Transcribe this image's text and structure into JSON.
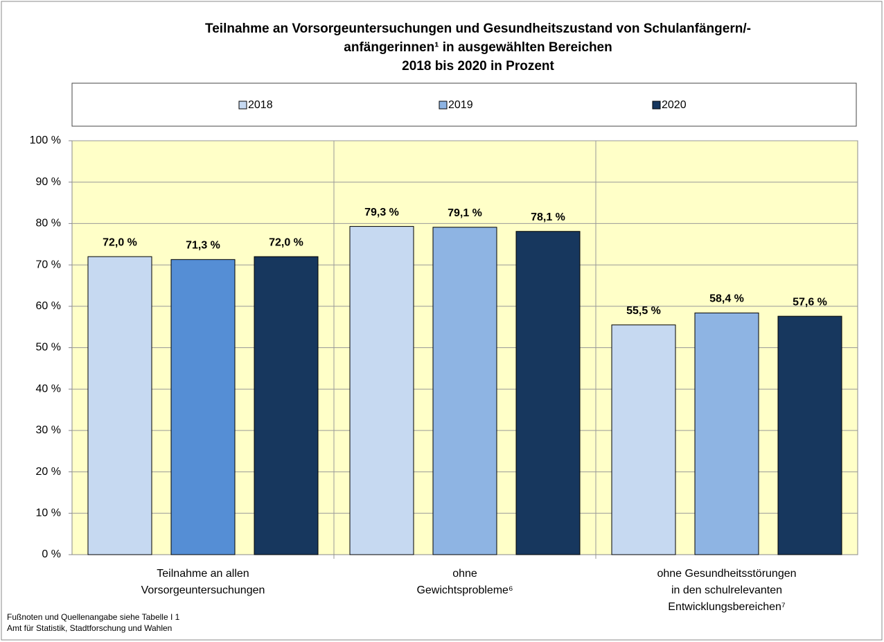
{
  "chart_data": {
    "type": "bar",
    "title": [
      "Teilnahme an Vorsorgeuntersuchungen und Gesundheitszustand von Schulanfängern/-",
      "anfängerinnen¹ in ausgewählten Bereichen",
      "2018 bis 2020 in Prozent"
    ],
    "categories": [
      [
        "Teilnahme an allen",
        "Vorsorgeuntersuchungen"
      ],
      [
        "ohne",
        "Gewichtsprobleme⁶"
      ],
      [
        "ohne Gesundheitsstörungen",
        "in den schulrelevanten",
        "Entwicklungsbereichen⁷"
      ]
    ],
    "series": [
      {
        "name": "2018",
        "color": "#c6d9f1",
        "values": [
          72.0,
          79.3,
          55.5
        ],
        "value_labels": [
          "72,0 %",
          "79,3 %",
          "55,5 %"
        ]
      },
      {
        "name": "2019",
        "color": "#8eb4e3",
        "colors": [
          "#558ed5",
          "#8eb4e3",
          "#8eb4e3"
        ],
        "values": [
          71.3,
          79.1,
          58.4
        ],
        "value_labels": [
          "71,3 %",
          "79,1 %",
          "58,4 %"
        ]
      },
      {
        "name": "2020",
        "color": "#17375e",
        "values": [
          72.0,
          78.1,
          57.6
        ],
        "value_labels": [
          "72,0 %",
          "78,1 %",
          "57,6 %"
        ]
      }
    ],
    "ylim": [
      0,
      100
    ],
    "yticks": [
      {
        "value": 0,
        "label": "0 %"
      },
      {
        "value": 10,
        "label": "10 %"
      },
      {
        "value": 20,
        "label": "20 %"
      },
      {
        "value": 30,
        "label": "30 %"
      },
      {
        "value": 40,
        "label": "40 %"
      },
      {
        "value": 50,
        "label": "50 %"
      },
      {
        "value": 60,
        "label": "60 %"
      },
      {
        "value": 70,
        "label": "70 %"
      },
      {
        "value": 80,
        "label": "80 %"
      },
      {
        "value": 90,
        "label": "90 %"
      },
      {
        "value": 100,
        "label": "100 %"
      }
    ],
    "grid": true,
    "legend": "top",
    "plot_background": "#ffffc8",
    "footnotes": [
      "Fußnoten und Quellenangabe siehe Tabelle I 1",
      "Amt für Statistik, Stadtforschung und Wahlen"
    ]
  }
}
